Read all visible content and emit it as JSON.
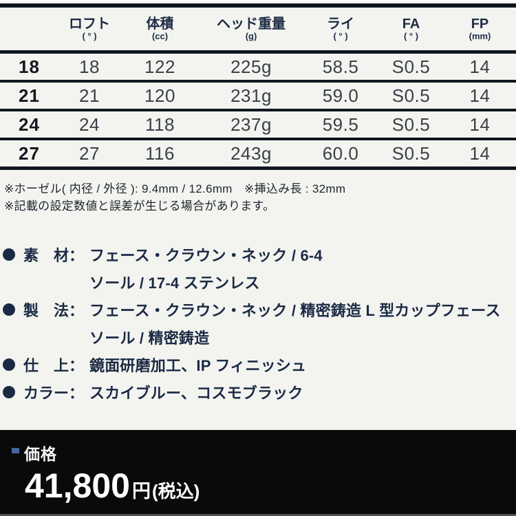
{
  "table": {
    "columns": [
      {
        "label": "",
        "unit": ""
      },
      {
        "label": "ロフト",
        "unit": "( ° )"
      },
      {
        "label": "体積",
        "unit": "(cc)"
      },
      {
        "label": "ヘッド重量",
        "unit": "(g)"
      },
      {
        "label": "ライ",
        "unit": "( ° )"
      },
      {
        "label": "FA",
        "unit": "( ° )"
      },
      {
        "label": "FP",
        "unit": "(mm)"
      }
    ],
    "rows": [
      [
        "18",
        "18",
        "122",
        "225g",
        "58.5",
        "S0.5",
        "14"
      ],
      [
        "21",
        "21",
        "120",
        "231g",
        "59.0",
        "S0.5",
        "14"
      ],
      [
        "24",
        "24",
        "118",
        "237g",
        "59.5",
        "S0.5",
        "14"
      ],
      [
        "27",
        "27",
        "116",
        "243g",
        "60.0",
        "S0.5",
        "14"
      ]
    ]
  },
  "notes": [
    "※ホーゼル( 内径 / 外径 ): 9.4mm / 12.6mm　※挿込み長 : 32mm",
    "※記載の設定数値と誤差が生じる場合があります。"
  ],
  "specs": [
    {
      "label": "素　材：",
      "lines": [
        "フェース・クラウン・ネック / 6-4",
        "ソール / 17-4 ステンレス"
      ]
    },
    {
      "label": "製　法：",
      "lines": [
        "フェース・クラウン・ネック / 精密鋳造 L 型カップフェース",
        "ソール / 精密鋳造"
      ]
    },
    {
      "label": "仕　上：",
      "lines": [
        "鏡面研磨加工、IP フィニッシュ"
      ]
    },
    {
      "label": "カラー：",
      "lines": [
        "スカイブルー、コスモブラック"
      ]
    }
  ],
  "price": {
    "label": "価格",
    "amount": "41,800",
    "unit": "円",
    "tax_note": "(税込)"
  },
  "colors": {
    "navy_text": "#1b2a44",
    "table_line": "#10161f",
    "price_band_bg": "#0a0a0a",
    "price_marker_blue": "#44679f",
    "page_bg": "#f3f4f0"
  }
}
